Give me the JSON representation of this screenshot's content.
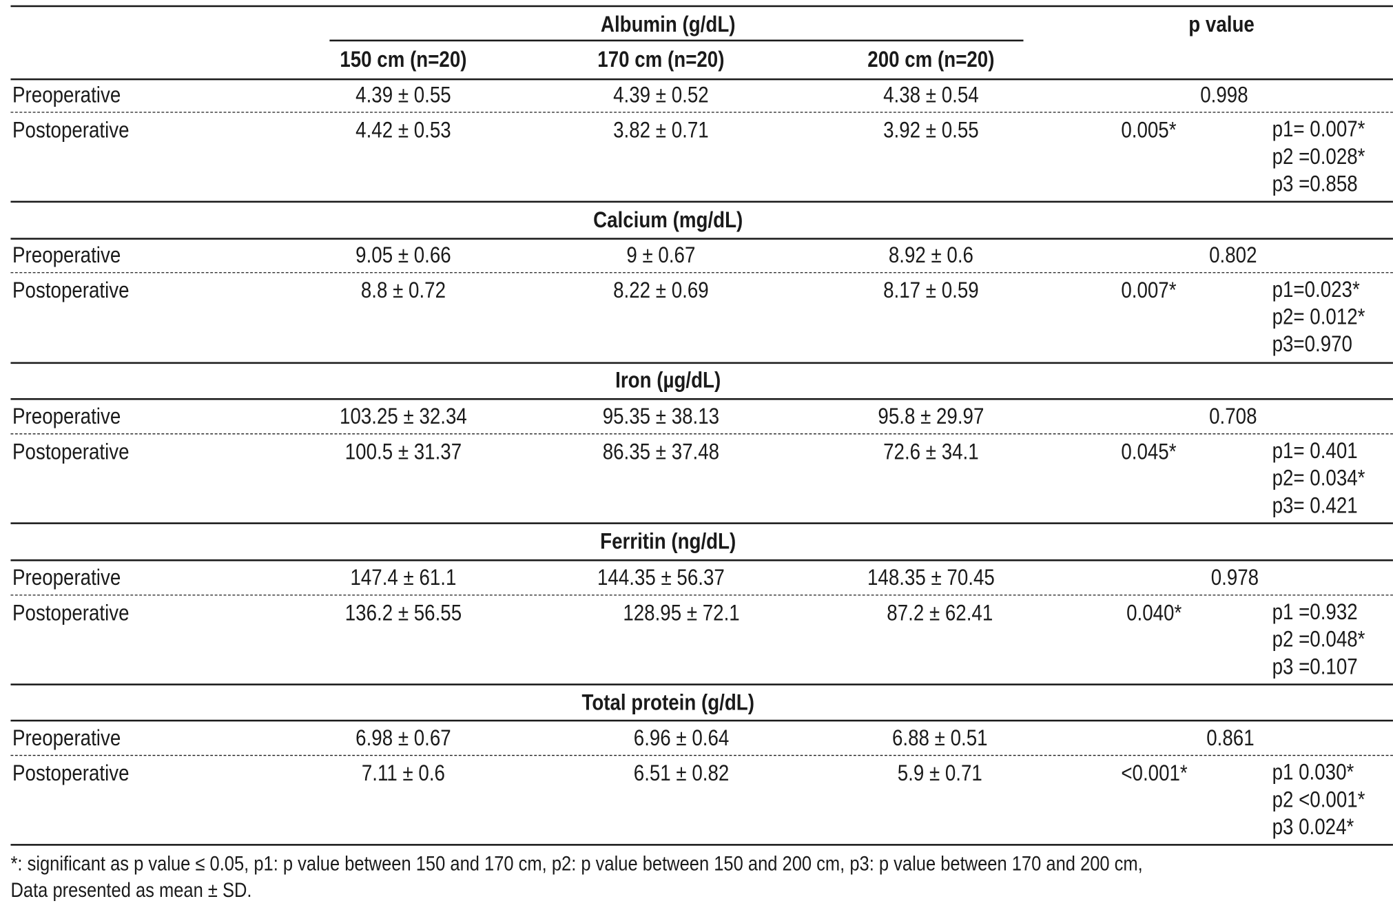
{
  "header": {
    "albumin_title": "Albumin (g/dL)",
    "p_value_title": "p value",
    "col1": "150 cm (n=20)",
    "col2": "170 cm (n=20)",
    "col3": "200 cm (n=20)"
  },
  "albumin": {
    "pre_label": "Preoperative",
    "pre": [
      "4.39 ± 0.55",
      "4.39 ± 0.52",
      "4.38 ± 0.54"
    ],
    "pre_p": "0.998",
    "post_label": "Postoperative",
    "post": [
      "4.42 ± 0.53",
      "3.82 ± 0.71",
      "3.92 ± 0.55"
    ],
    "post_p": "0.005*",
    "pairwise": [
      "p1= 0.007*",
      "p2 =0.028*",
      "p3 =0.858"
    ]
  },
  "calcium": {
    "title": "Calcium (mg/dL)",
    "pre_label": "Preoperative",
    "pre": [
      "9.05 ± 0.66",
      "9 ± 0.67",
      "8.92 ± 0.6"
    ],
    "pre_p": "0.802",
    "post_label": "Postoperative",
    "post": [
      "8.8 ± 0.72",
      "8.22 ± 0.69",
      "8.17 ± 0.59"
    ],
    "post_p": "0.007*",
    "pairwise": [
      "p1=0.023*",
      "p2= 0.012*",
      "p3=0.970"
    ]
  },
  "iron": {
    "title": "Iron (µg/dL)",
    "pre_label": "Preoperative",
    "pre": [
      "103.25 ± 32.34",
      "95.35 ± 38.13",
      "95.8 ± 29.97"
    ],
    "pre_p": "0.708",
    "post_label": "Postoperative",
    "post": [
      "100.5 ± 31.37",
      "86.35 ± 37.48",
      "72.6 ± 34.1"
    ],
    "post_p": "0.045*",
    "pairwise": [
      "p1= 0.401",
      "p2= 0.034*",
      "p3= 0.421"
    ]
  },
  "ferritin": {
    "title": "Ferritin (ng/dL)",
    "pre_label": "Preoperative",
    "pre": [
      "147.4 ± 61.1",
      "144.35 ± 56.37",
      "148.35 ± 70.45"
    ],
    "pre_p": "0.978",
    "post_label": "Postoperative",
    "post": [
      "136.2 ± 56.55",
      "128.95 ± 72.1",
      "87.2 ± 62.41"
    ],
    "post_p": "0.040*",
    "pairwise": [
      "p1 =0.932",
      "p2 =0.048*",
      "p3 =0.107"
    ]
  },
  "protein": {
    "title": "Total protein (g/dL)",
    "pre_label": "Preoperative",
    "pre": [
      "6.98 ± 0.67",
      "6.96 ± 0.64",
      "6.88 ± 0.51"
    ],
    "pre_p": "0.861",
    "post_label": "Postoperative",
    "post": [
      "7.11 ± 0.6",
      "6.51 ± 0.82",
      "5.9 ± 0.71"
    ],
    "post_p": "<0.001*",
    "pairwise": [
      "p1 0.030*",
      "p2 <0.001*",
      "p3 0.024*"
    ]
  },
  "footnote": {
    "line1": "*: significant as p value ≤ 0.05, p1: p value between 150 and 170 cm, p2: p value between 150 and 200 cm, p3: p value between 170 and 200 cm,",
    "line2": "Data presented as mean ± SD."
  }
}
